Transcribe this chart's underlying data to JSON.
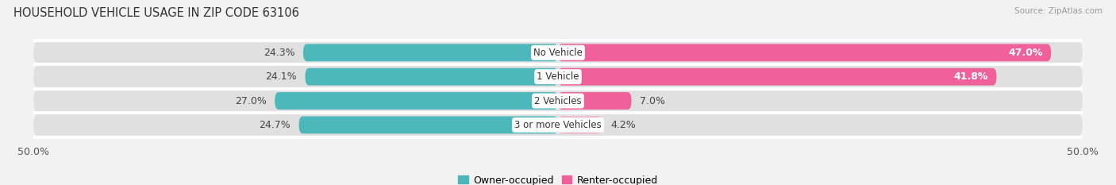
{
  "title": "HOUSEHOLD VEHICLE USAGE IN ZIP CODE 63106",
  "source": "Source: ZipAtlas.com",
  "categories": [
    "No Vehicle",
    "1 Vehicle",
    "2 Vehicles",
    "3 or more Vehicles"
  ],
  "owner_values": [
    24.3,
    24.1,
    27.0,
    24.7
  ],
  "renter_values": [
    47.0,
    41.8,
    7.0,
    4.2
  ],
  "owner_color": "#4db8bc",
  "renter_color": "#f0609a",
  "renter_color_light": "#f5aac8",
  "bg_color": "#f2f2f2",
  "bar_bg_color": "#e0e0e0",
  "axis_limit": 50.0,
  "legend_owner": "Owner-occupied",
  "legend_renter": "Renter-occupied",
  "bar_height": 0.72,
  "label_fontsize": 9,
  "title_fontsize": 10.5,
  "category_fontsize": 8.5,
  "source_fontsize": 7.5
}
